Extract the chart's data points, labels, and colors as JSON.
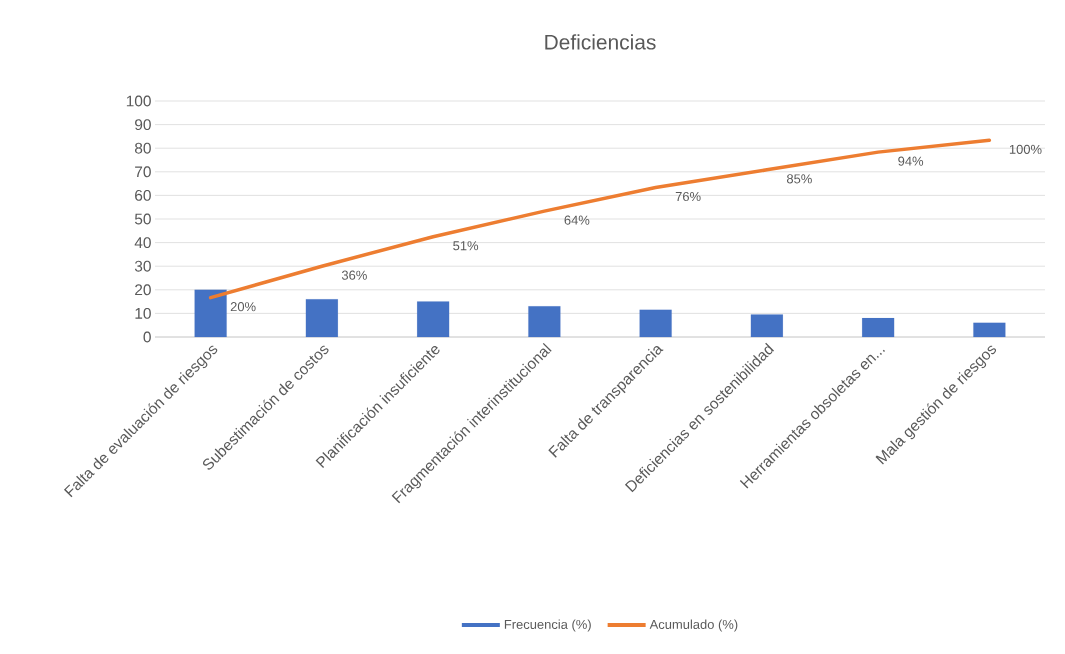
{
  "chart_data": {
    "type": "bar",
    "title": "Deficiencias",
    "categories": [
      "Falta de evaluación de riesgos",
      "Subestimación de costos",
      "Planificación insuficiente",
      "Fragmentación interinstitucional",
      "Falta de transparencia",
      "Deficiencias en sostenibilidad",
      "Herramientas obsoletas en...",
      "Mala gestión de riesgos"
    ],
    "series": [
      {
        "name": "Frecuencia (%)",
        "color": "#4472c4",
        "values": [
          20,
          16,
          15,
          13,
          11.5,
          9.5,
          8,
          6
        ]
      },
      {
        "name": "Acumulado (%)",
        "type": "line",
        "axis": "y2",
        "color": "#ed7d31",
        "values": [
          20,
          36,
          51,
          64,
          76,
          85,
          94,
          100
        ],
        "value_labels": [
          "20%",
          "36%",
          "51%",
          "64%",
          "76%",
          "85%",
          "94%",
          "100%"
        ]
      }
    ],
    "ylim": [
      0,
      100
    ],
    "yticks": [
      0,
      10,
      20,
      30,
      40,
      50,
      60,
      70,
      80,
      90,
      100
    ],
    "y2lim": [
      0,
      120
    ],
    "grid": "y",
    "legend": "bottom"
  }
}
